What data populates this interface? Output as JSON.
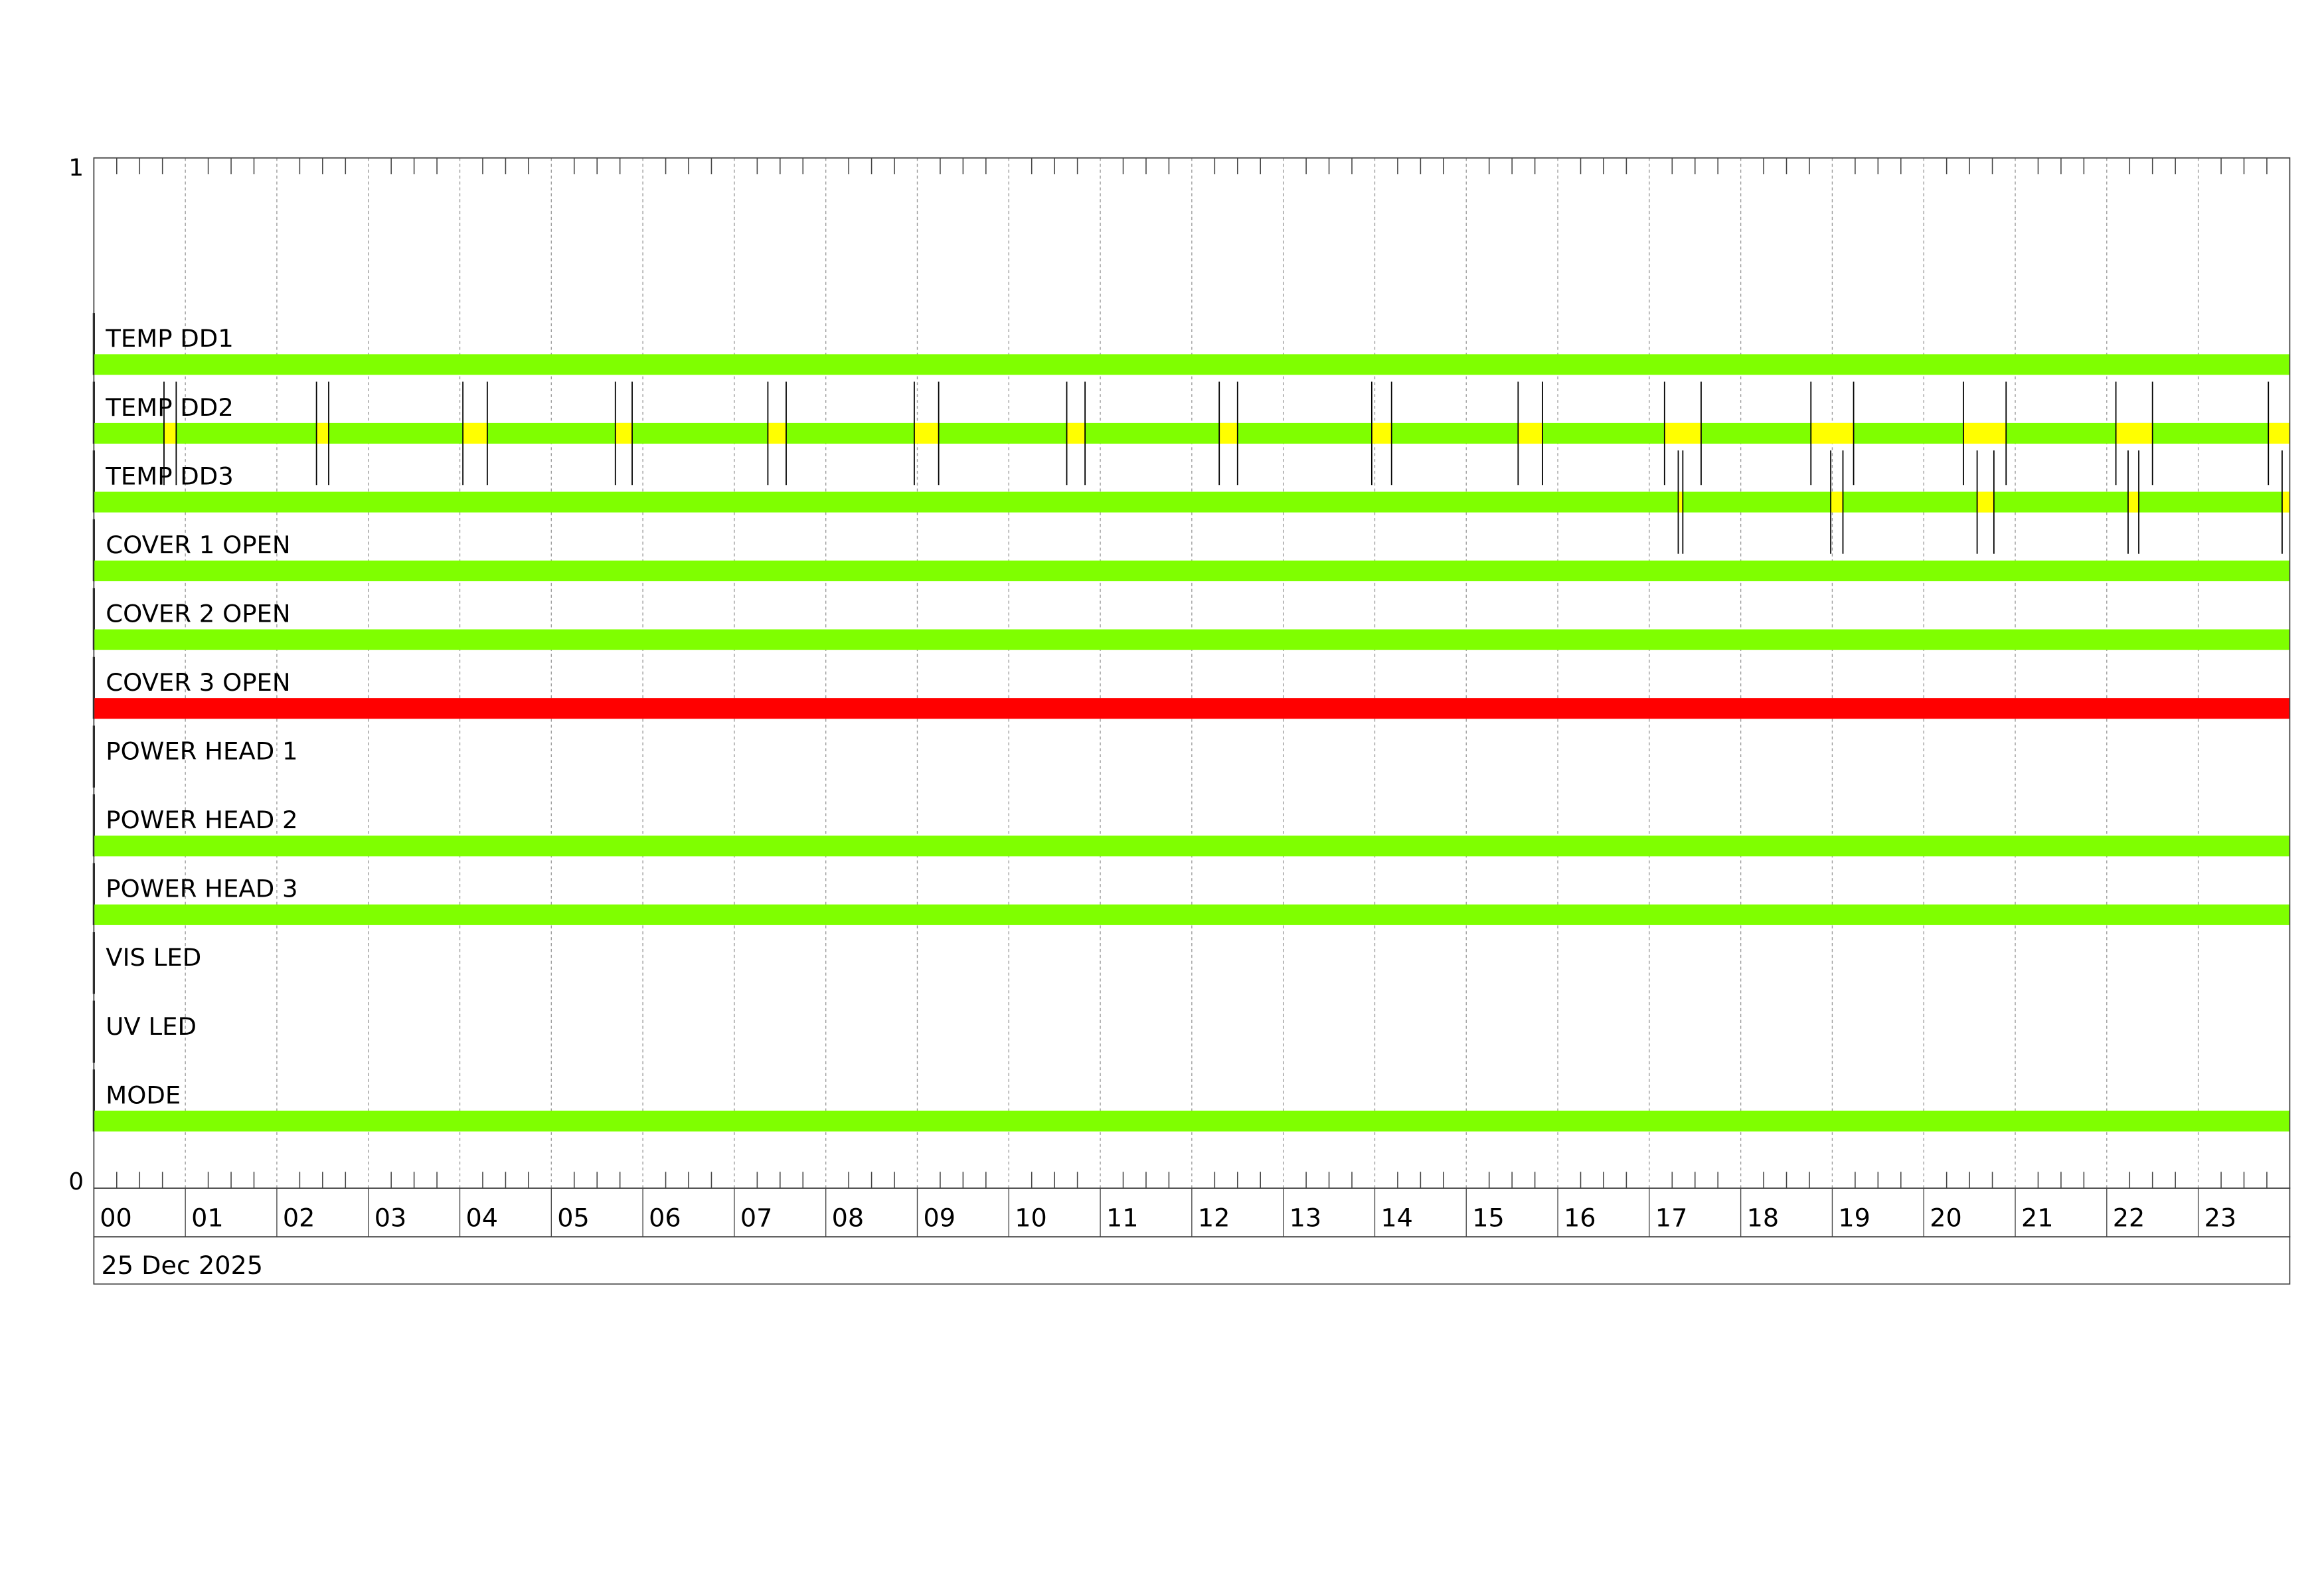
{
  "chart_data": {
    "type": "bar",
    "orientation": "horizontal-timeline",
    "date_label": "25 Dec 2025",
    "y_tick_labels": [
      "1",
      "0"
    ],
    "x_tick_labels": [
      "00",
      "01",
      "02",
      "03",
      "04",
      "05",
      "06",
      "07",
      "08",
      "09",
      "10",
      "11",
      "12",
      "13",
      "14",
      "15",
      "16",
      "17",
      "18",
      "19",
      "20",
      "21",
      "22",
      "23"
    ],
    "x_range": [
      "00:00",
      "24:00"
    ],
    "minor_tick_minutes": 15,
    "grid": "vertical dashed hourly",
    "colors": {
      "ok": "#7FFF00",
      "warning": "#FFFF00",
      "alarm": "#FF0000",
      "marker": "#000000",
      "grid": "#999999"
    },
    "rows": [
      {
        "label": "TEMP DD1",
        "state": "ok",
        "warnings": []
      },
      {
        "label": "TEMP DD2",
        "state": "ok",
        "warnings": [
          [
            "00:46",
            "00:54"
          ],
          [
            "02:26",
            "02:34"
          ],
          [
            "04:02",
            "04:18"
          ],
          [
            "05:42",
            "05:53"
          ],
          [
            "07:22",
            "07:34"
          ],
          [
            "08:58",
            "09:14"
          ],
          [
            "10:38",
            "10:50"
          ],
          [
            "12:18",
            "12:30"
          ],
          [
            "13:58",
            "14:11"
          ],
          [
            "15:34",
            "15:50"
          ],
          [
            "17:10",
            "17:34"
          ],
          [
            "18:46",
            "19:14"
          ],
          [
            "20:26",
            "20:54"
          ],
          [
            "22:06",
            "22:30"
          ],
          [
            "23:46",
            "24:00"
          ]
        ]
      },
      {
        "label": "TEMP DD3",
        "state": "ok",
        "warnings": [
          [
            "17:19",
            "17:22"
          ],
          [
            "18:59",
            "19:07"
          ],
          [
            "20:35",
            "20:46"
          ],
          [
            "22:14",
            "22:21"
          ],
          [
            "23:55",
            "24:00"
          ]
        ]
      },
      {
        "label": "COVER 1 OPEN",
        "state": "ok",
        "warnings": []
      },
      {
        "label": "COVER 2 OPEN",
        "state": "ok",
        "warnings": []
      },
      {
        "label": "COVER 3 OPEN",
        "state": "alarm",
        "warnings": []
      },
      {
        "label": "POWER HEAD 1",
        "state": null,
        "warnings": []
      },
      {
        "label": "POWER HEAD 2",
        "state": "ok",
        "warnings": []
      },
      {
        "label": "POWER HEAD 3",
        "state": "ok",
        "warnings": []
      },
      {
        "label": "VIS LED",
        "state": null,
        "warnings": []
      },
      {
        "label": "UV LED",
        "state": null,
        "warnings": []
      },
      {
        "label": "MODE",
        "state": "ok",
        "warnings": []
      }
    ]
  }
}
